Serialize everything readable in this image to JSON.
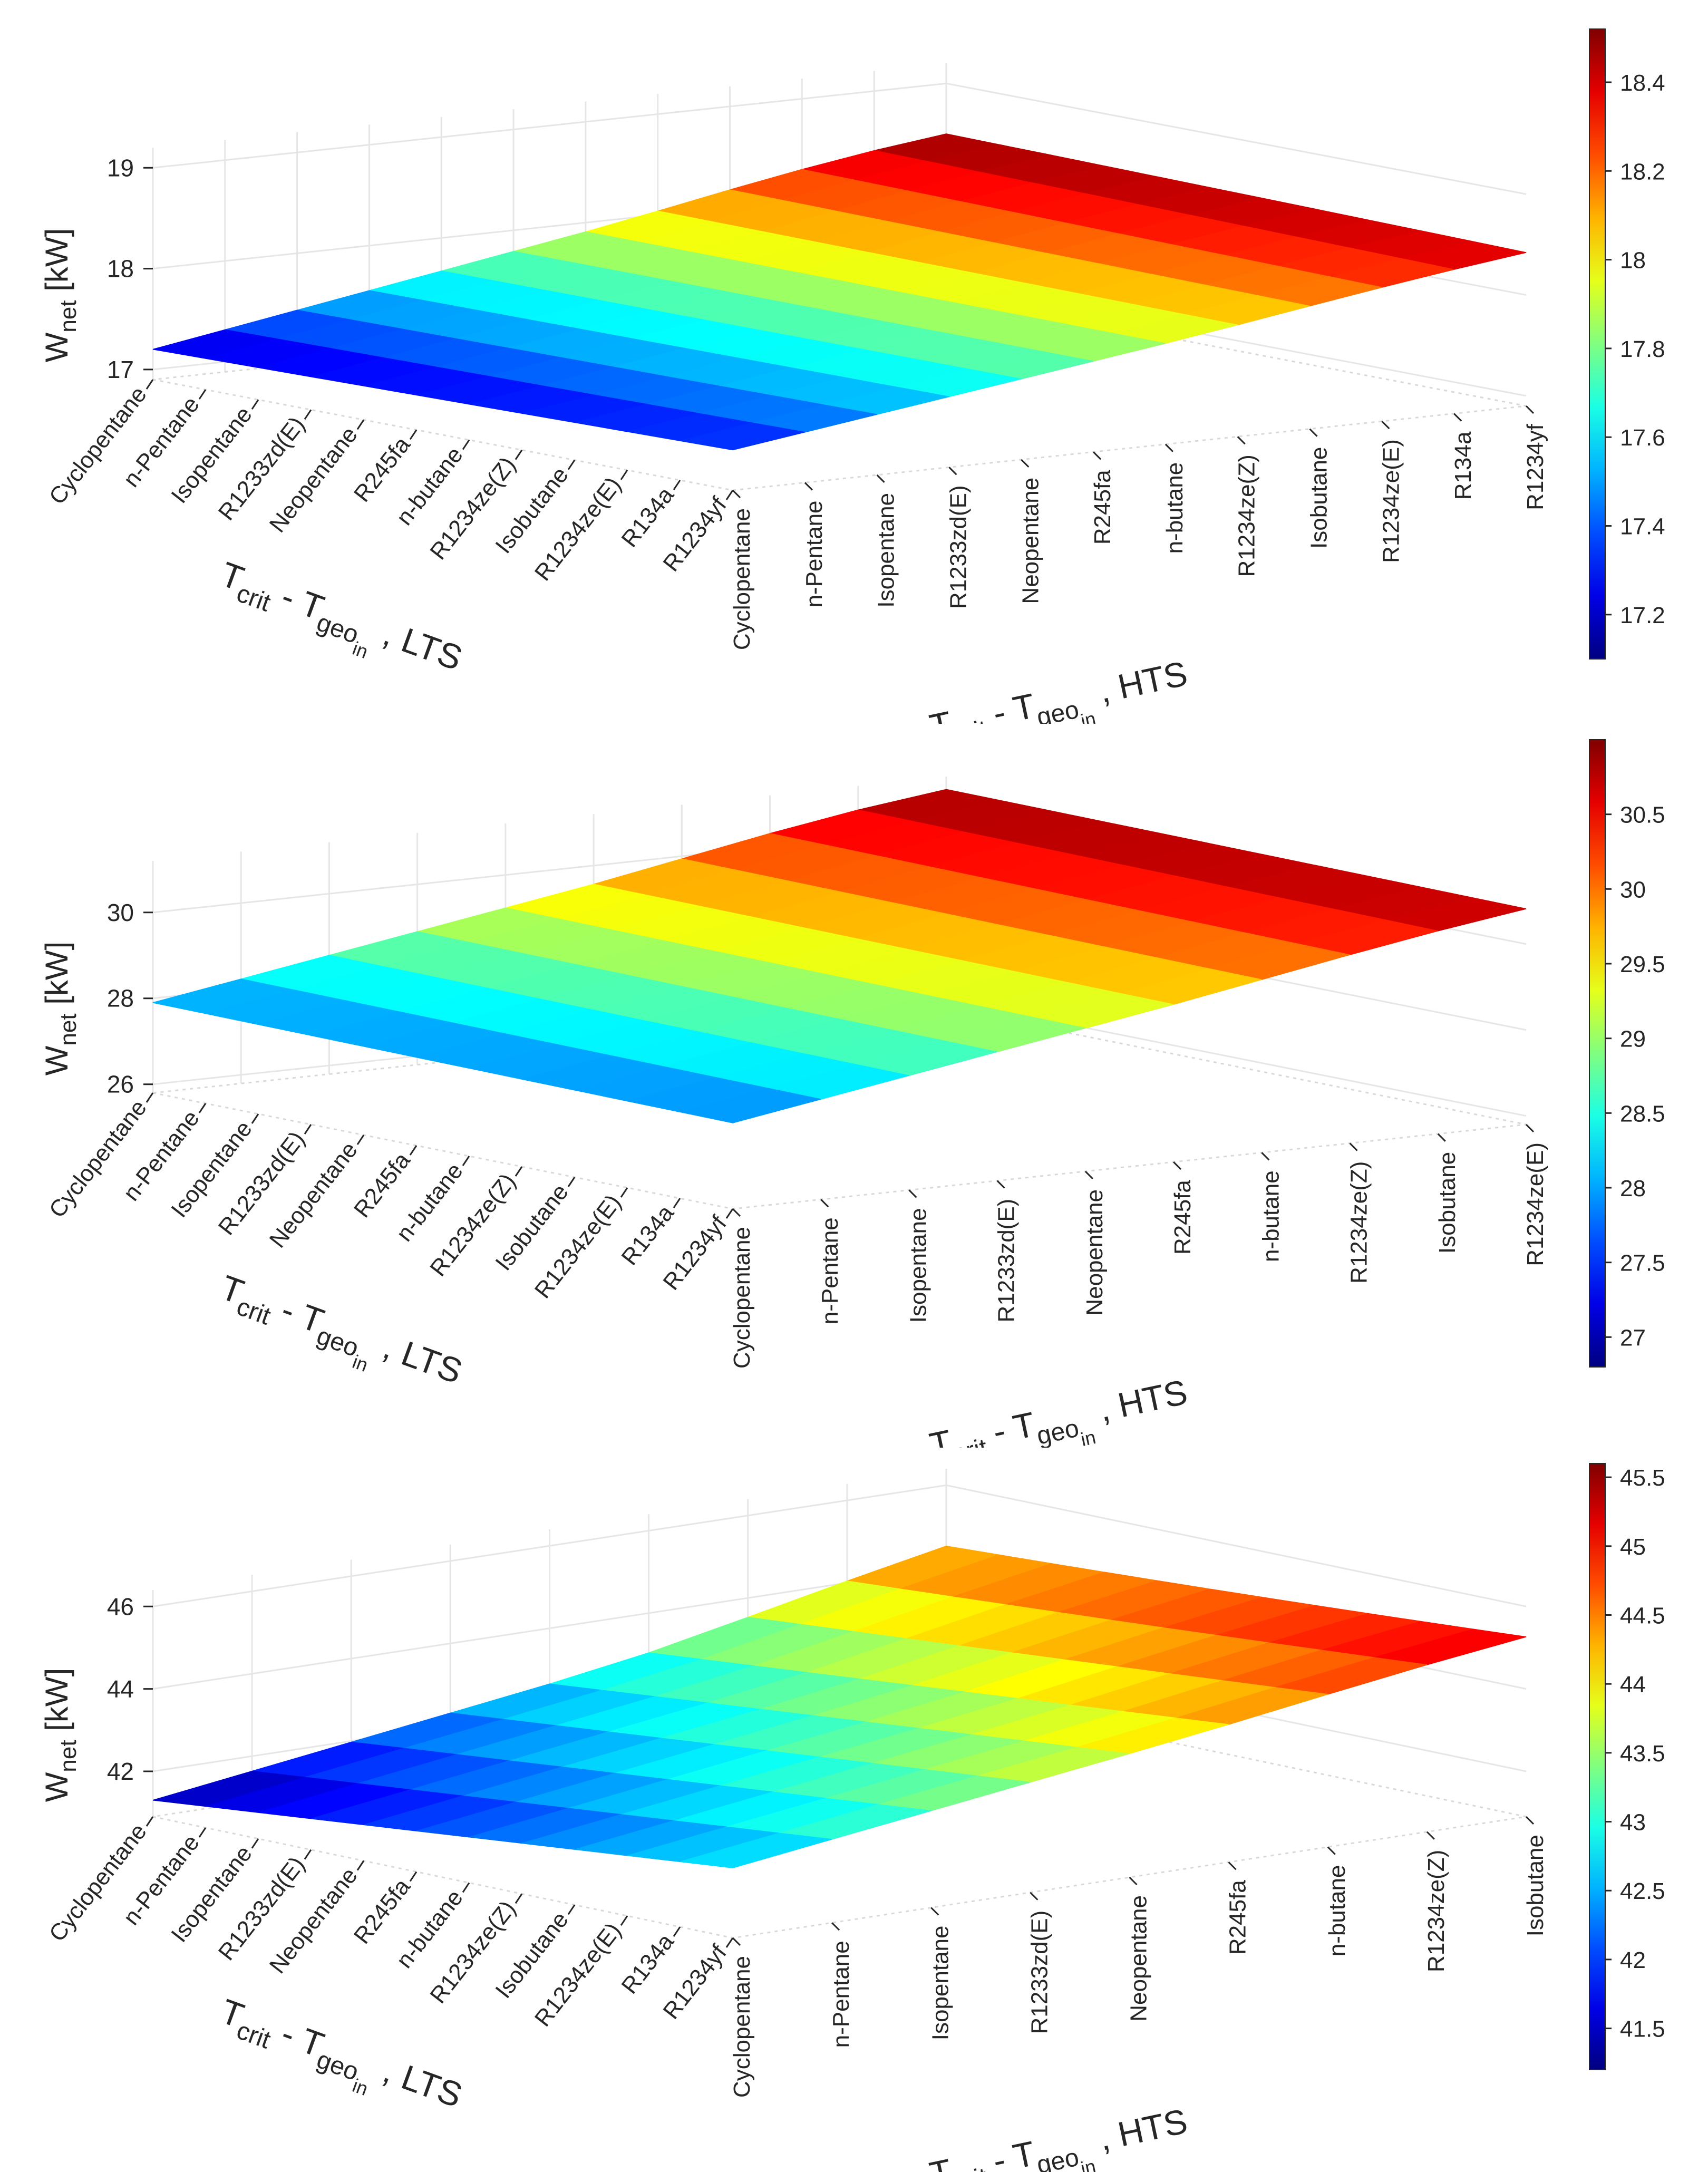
{
  "figure": {
    "z_label_main": "W",
    "z_label_sub": "net",
    "z_label_unit": "[kW]",
    "lts_label": {
      "main": "T",
      "sub1": "crit",
      "dash": " - T",
      "sub2": "geo",
      "sub3": "in",
      "tail": " , LTS"
    },
    "hts_label": {
      "main": "T",
      "sub1": "crit",
      "dash": " - T",
      "sub2": "geo",
      "sub3": "in",
      "tail": " , HTS"
    },
    "lts_fluids": [
      "Cyclopentane",
      "n-Pentane",
      "Isopentane",
      "R1233zd(E)",
      "Neopentane",
      "R245fa",
      "n-butane",
      "R1234ze(Z)",
      "Isobutane",
      "R1234ze(E)",
      "R134a",
      "R1234yf"
    ]
  },
  "colors": {
    "axis": "#262626",
    "grid": "#e6e6e6",
    "box": "#d9d9d9"
  },
  "chart_data": [
    {
      "type": "surface",
      "xlabel": "T_crit - T_geo_in , LTS",
      "ylabel": "T_crit - T_geo_in , HTS",
      "zlabel": "W_net [kW]",
      "x_categories": [
        "Cyclopentane",
        "n-Pentane",
        "Isopentane",
        "R1233zd(E)",
        "Neopentane",
        "R245fa",
        "n-butane",
        "R1234ze(Z)",
        "Isobutane",
        "R1234ze(E)",
        "R134a",
        "R1234yf"
      ],
      "y_categories": [
        "Cyclopentane",
        "n-Pentane",
        "Isopentane",
        "R1233zd(E)",
        "Neopentane",
        "R245fa",
        "n-butane",
        "R1234ze(Z)",
        "Isobutane",
        "R1234ze(E)",
        "R134a",
        "R1234yf"
      ],
      "z_ticks": [
        "17",
        "18",
        "19"
      ],
      "zlim": [
        16.9,
        19.2
      ],
      "colorbar_ticks": [
        "17.2",
        "17.4",
        "17.6",
        "17.8",
        "18",
        "18.2",
        "18.4"
      ],
      "colorbar_range": [
        17.1,
        18.52
      ],
      "corner_values": {
        "front_left": 17.2,
        "front_right": 17.3,
        "back_left": 18.5,
        "back_right": 18.4
      },
      "max_value": 18.5
    },
    {
      "type": "surface",
      "xlabel": "T_crit - T_geo_in , LTS",
      "ylabel": "T_crit - T_geo_in , HTS",
      "zlabel": "W_net [kW]",
      "x_categories": [
        "Cyclopentane",
        "n-Pentane",
        "Isopentane",
        "R1233zd(E)",
        "Neopentane",
        "R245fa",
        "n-butane",
        "R1234ze(Z)",
        "Isobutane",
        "R1234ze(E)",
        "R134a",
        "R1234yf"
      ],
      "y_categories": [
        "Cyclopentane",
        "n-Pentane",
        "Isopentane",
        "R1233zd(E)",
        "Neopentane",
        "R245fa",
        "n-butane",
        "R1234ze(Z)",
        "Isobutane",
        "R1234ze(E)"
      ],
      "z_ticks": [
        "26",
        "28",
        "30"
      ],
      "zlim": [
        25.8,
        31.2
      ],
      "colorbar_ticks": [
        "27",
        "27.5",
        "28",
        "28.5",
        "29",
        "29.5",
        "30",
        "30.5"
      ],
      "colorbar_range": [
        26.8,
        31.0
      ],
      "corner_values": {
        "front_left": 27.9,
        "front_right": 27.8,
        "back_left": 30.9,
        "back_right": 30.8
      },
      "max_value": 30.9
    },
    {
      "type": "surface",
      "xlabel": "T_crit - T_geo_in , LTS",
      "ylabel": "T_crit - T_geo_in , HTS",
      "zlabel": "W_net [kW]",
      "x_categories": [
        "Cyclopentane",
        "n-Pentane",
        "Isopentane",
        "R1233zd(E)",
        "Neopentane",
        "R245fa",
        "n-butane",
        "R1234ze(Z)",
        "Isobutane",
        "R1234ze(E)",
        "R134a",
        "R1234yf"
      ],
      "y_categories": [
        "Cyclopentane",
        "n-Pentane",
        "Isopentane",
        "R1233zd(E)",
        "Neopentane",
        "R245fa",
        "n-butane",
        "R1234ze(Z)",
        "Isobutane"
      ],
      "z_ticks": [
        "42",
        "44",
        "46"
      ],
      "zlim": [
        40.9,
        46.4
      ],
      "colorbar_ticks": [
        "41.5",
        "42",
        "42.5",
        "43",
        "43.5",
        "44",
        "44.5",
        "45",
        "45.5"
      ],
      "colorbar_range": [
        41.2,
        45.6
      ],
      "corner_values": {
        "front_left": 41.3,
        "front_right": 42.6,
        "back_left": 44.0,
        "back_right": 45.2
      },
      "max_value": 45.5
    }
  ]
}
